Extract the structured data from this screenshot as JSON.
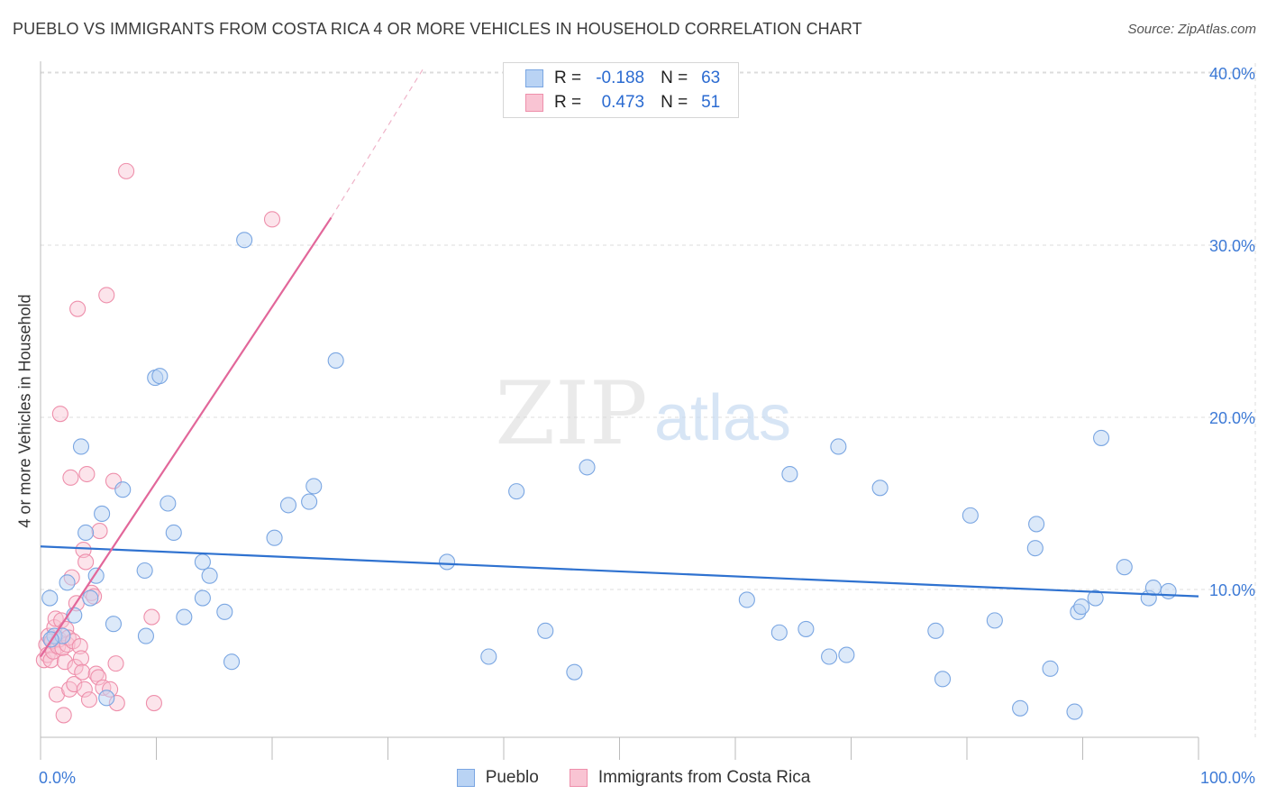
{
  "header": {
    "title": "PUEBLO VS IMMIGRANTS FROM COSTA RICA 4 OR MORE VEHICLES IN HOUSEHOLD CORRELATION CHART",
    "source": "Source: ZipAtlas.com"
  },
  "watermark": {
    "zip": "ZIP",
    "atlas": "atlas"
  },
  "legend": {
    "r_label": "R =",
    "n_label": "N =",
    "series": [
      {
        "name": "Pueblo",
        "r": "-0.188",
        "n": "63",
        "fill": "#b9d3f4",
        "stroke": "#7aa6e2"
      },
      {
        "name": "Immigrants from Costa Rica",
        "r": "0.473",
        "n": "51",
        "fill": "#f9c4d3",
        "stroke": "#ee8fab"
      }
    ]
  },
  "chart_data": {
    "type": "scatter",
    "title": "PUEBLO VS IMMIGRANTS FROM COSTA RICA 4 OR MORE VEHICLES IN HOUSEHOLD CORRELATION CHART",
    "xlabel": "",
    "ylabel": "4 or more Vehicles in Household",
    "xlim": [
      0,
      100
    ],
    "ylim": [
      0,
      42
    ],
    "x_tick_labels": [
      "0.0%",
      "100.0%"
    ],
    "y_ticks": [
      10,
      20,
      30,
      40
    ],
    "y_tick_labels": [
      "10.0%",
      "20.0%",
      "30.0%",
      "40.0%"
    ],
    "grid": true,
    "colors": {
      "pueblo_line": "#2f72d0",
      "costa_line": "#e2679a",
      "tick_label": "#3d7ad6"
    },
    "series": [
      {
        "name": "Pueblo",
        "trend": {
          "x": [
            0,
            100
          ],
          "y": [
            12.5,
            9.6
          ]
        },
        "points": [
          [
            0.8,
            9.5
          ],
          [
            1.2,
            7.3
          ],
          [
            1.9,
            7.3
          ],
          [
            2.3,
            10.4
          ],
          [
            2.9,
            8.5
          ],
          [
            3.5,
            18.3
          ],
          [
            3.9,
            13.3
          ],
          [
            4.3,
            9.5
          ],
          [
            4.8,
            10.8
          ],
          [
            5.3,
            14.4
          ],
          [
            5.7,
            3.7
          ],
          [
            6.3,
            8.0
          ],
          [
            7.1,
            15.8
          ],
          [
            9.0,
            11.1
          ],
          [
            9.1,
            7.3
          ],
          [
            9.9,
            22.3
          ],
          [
            10.3,
            22.4
          ],
          [
            11.0,
            15.0
          ],
          [
            11.5,
            13.3
          ],
          [
            12.4,
            8.4
          ],
          [
            14.0,
            11.6
          ],
          [
            14.0,
            9.5
          ],
          [
            14.6,
            10.8
          ],
          [
            15.9,
            8.7
          ],
          [
            16.5,
            5.8
          ],
          [
            17.6,
            30.3
          ],
          [
            20.2,
            13.0
          ],
          [
            21.4,
            14.9
          ],
          [
            23.2,
            15.1
          ],
          [
            23.6,
            16.0
          ],
          [
            25.5,
            23.3
          ],
          [
            35.1,
            11.6
          ],
          [
            38.7,
            6.1
          ],
          [
            41.1,
            15.7
          ],
          [
            43.6,
            7.6
          ],
          [
            46.1,
            5.2
          ],
          [
            47.2,
            17.1
          ],
          [
            61.0,
            9.4
          ],
          [
            63.8,
            7.5
          ],
          [
            64.7,
            16.7
          ],
          [
            66.1,
            7.7
          ],
          [
            68.1,
            6.1
          ],
          [
            68.9,
            18.3
          ],
          [
            69.6,
            6.2
          ],
          [
            72.5,
            15.9
          ],
          [
            77.3,
            7.6
          ],
          [
            77.9,
            4.8
          ],
          [
            80.3,
            14.3
          ],
          [
            82.4,
            8.2
          ],
          [
            84.6,
            3.1
          ],
          [
            85.9,
            12.4
          ],
          [
            86.0,
            13.8
          ],
          [
            87.2,
            5.4
          ],
          [
            89.3,
            2.9
          ],
          [
            89.6,
            8.7
          ],
          [
            89.9,
            9.0
          ],
          [
            91.1,
            9.5
          ],
          [
            91.6,
            18.8
          ],
          [
            93.6,
            11.3
          ],
          [
            95.7,
            9.5
          ],
          [
            96.1,
            10.1
          ],
          [
            97.4,
            9.9
          ],
          [
            0.9,
            7.1
          ]
        ]
      },
      {
        "name": "Immigrants from Costa Rica",
        "trend": {
          "x": [
            0,
            25.1
          ],
          "y": [
            6.1,
            31.6
          ],
          "dashed_x": [
            25.1,
            33.0
          ],
          "dashed_y": [
            31.6,
            40.2
          ]
        },
        "points": [
          [
            0.3,
            5.9
          ],
          [
            0.5,
            6.8
          ],
          [
            0.6,
            6.2
          ],
          [
            0.7,
            7.3
          ],
          [
            0.9,
            5.9
          ],
          [
            1.0,
            7.0
          ],
          [
            1.1,
            6.4
          ],
          [
            1.2,
            7.8
          ],
          [
            1.3,
            8.3
          ],
          [
            1.4,
            3.9
          ],
          [
            1.5,
            6.7
          ],
          [
            1.6,
            7.1
          ],
          [
            1.7,
            20.2
          ],
          [
            1.8,
            8.2
          ],
          [
            1.9,
            6.6
          ],
          [
            2.0,
            2.7
          ],
          [
            2.1,
            5.8
          ],
          [
            2.2,
            7.7
          ],
          [
            2.3,
            6.8
          ],
          [
            2.4,
            7.2
          ],
          [
            2.5,
            4.2
          ],
          [
            2.6,
            16.5
          ],
          [
            2.7,
            10.7
          ],
          [
            2.8,
            7.0
          ],
          [
            2.9,
            4.5
          ],
          [
            3.0,
            5.5
          ],
          [
            3.1,
            9.2
          ],
          [
            3.2,
            26.3
          ],
          [
            3.4,
            6.7
          ],
          [
            3.5,
            6.0
          ],
          [
            3.6,
            5.2
          ],
          [
            3.7,
            12.3
          ],
          [
            3.8,
            4.2
          ],
          [
            3.9,
            11.6
          ],
          [
            4.0,
            16.7
          ],
          [
            4.2,
            3.6
          ],
          [
            4.4,
            9.8
          ],
          [
            4.6,
            9.6
          ],
          [
            4.8,
            5.1
          ],
          [
            5.0,
            4.9
          ],
          [
            5.1,
            13.4
          ],
          [
            5.4,
            4.3
          ],
          [
            5.7,
            27.1
          ],
          [
            6.0,
            4.2
          ],
          [
            6.3,
            16.3
          ],
          [
            6.5,
            5.7
          ],
          [
            6.6,
            3.4
          ],
          [
            7.4,
            34.3
          ],
          [
            9.6,
            8.4
          ],
          [
            9.8,
            3.4
          ],
          [
            20.0,
            31.5
          ]
        ]
      }
    ]
  }
}
